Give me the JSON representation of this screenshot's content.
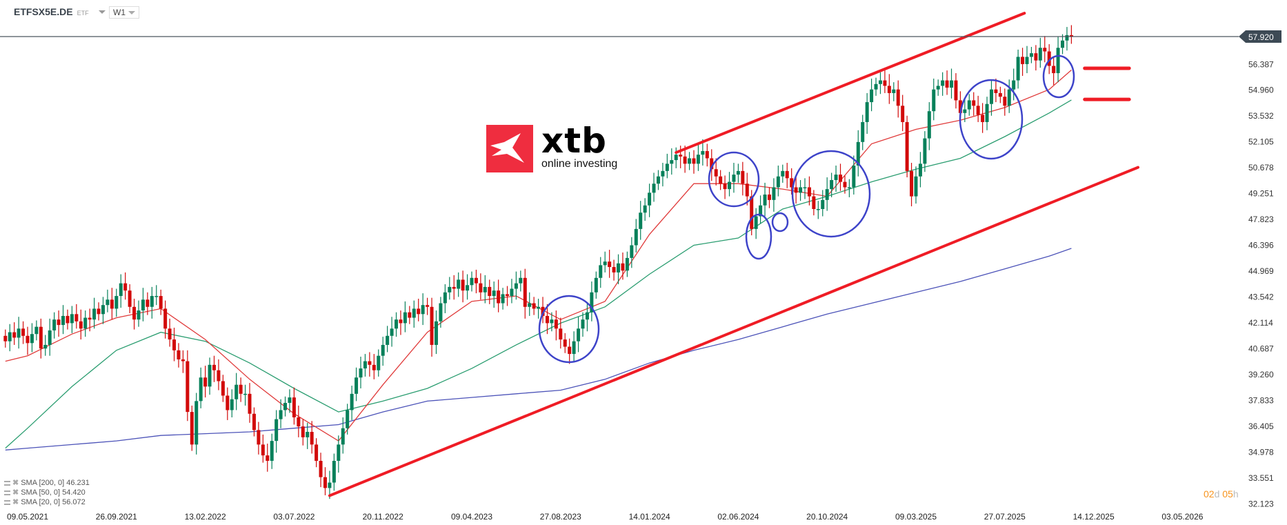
{
  "header": {
    "symbol": "ETFSX5E.DE",
    "type": "ETF",
    "timeframe": "W1"
  },
  "logo": {
    "brand": "xtb",
    "tagline": "online investing"
  },
  "legend": [
    {
      "label": "SMA [200,  0] 46.231",
      "color": "#4b52b8"
    },
    {
      "label": "SMA [50,  0] 54.420",
      "color": "#2a9d70"
    },
    {
      "label": "SMA [20,  0] 56.072",
      "color": "#e03a3a"
    }
  ],
  "countdown": {
    "days": "02",
    "d": "d",
    "hours": "05",
    "h": "h"
  },
  "colors": {
    "up": "#07805a",
    "down": "#d20a0a",
    "channel": "#ef1c25",
    "circles": "#3d43c9",
    "price_tag": "#3d4a55"
  },
  "chart_data": {
    "type": "candlestick",
    "interval": "W1",
    "current_price": "57.920",
    "y_ticks": [
      "56.387",
      "54.960",
      "53.532",
      "52.105",
      "50.678",
      "49.251",
      "47.823",
      "46.396",
      "44.969",
      "43.542",
      "42.114",
      "40.687",
      "39.260",
      "37.833",
      "36.405",
      "34.978",
      "33.551",
      "32.123"
    ],
    "x_ticks": [
      "09.05.2021",
      "26.09.2021",
      "13.02.2022",
      "03.07.2022",
      "20.11.2022",
      "09.04.2023",
      "27.08.2023",
      "14.01.2024",
      "02.06.2024",
      "20.10.2024",
      "09.03.2025",
      "27.07.2025",
      "14.12.2025",
      "03.05.2026"
    ],
    "first_candle": "2021-04-04",
    "closes": [
      41.1,
      41.6,
      41.3,
      41.8,
      41.4,
      41.0,
      41.5,
      41.9,
      40.7,
      40.9,
      41.7,
      42.3,
      42.0,
      42.5,
      42.1,
      42.6,
      42.2,
      41.8,
      42.4,
      42.3,
      42.9,
      42.6,
      43.1,
      43.4,
      42.9,
      43.6,
      44.3,
      43.9,
      43.0,
      42.3,
      42.8,
      43.4,
      43.0,
      43.6,
      43.6,
      42.9,
      41.8,
      41.2,
      40.6,
      40.1,
      40.0,
      37.2,
      35.4,
      37.8,
      39.1,
      38.6,
      39.8,
      39.5,
      38.9,
      38.1,
      37.3,
      37.9,
      38.7,
      38.2,
      38.2,
      37.1,
      36.2,
      35.4,
      34.8,
      34.5,
      35.6,
      36.8,
      37.3,
      37.7,
      38.0,
      36.9,
      36.4,
      35.8,
      36.1,
      35.4,
      34.5,
      33.6,
      33.0,
      33.3,
      34.5,
      35.4,
      36.3,
      37.3,
      38.2,
      39.1,
      39.6,
      40.0,
      39.8,
      39.5,
      40.3,
      40.9,
      41.4,
      41.8,
      42.3,
      42.1,
      42.7,
      42.4,
      42.9,
      42.6,
      43.1,
      43.0,
      40.9,
      42.2,
      43.2,
      43.8,
      44.1,
      44.0,
      44.5,
      43.9,
      44.2,
      44.6,
      44.3,
      43.8,
      44.1,
      43.6,
      43.9,
      43.2,
      43.7,
      43.6,
      44.0,
      44.3,
      44.6,
      43.0,
      43.2,
      42.9,
      43.0,
      42.5,
      42.1,
      42.3,
      41.8,
      41.2,
      40.8,
      40.4,
      41.1,
      41.8,
      42.3,
      42.7,
      43.8,
      44.6,
      45.3,
      45.5,
      45.2,
      44.9,
      45.4,
      45.0,
      45.7,
      46.4,
      47.3,
      48.2,
      48.6,
      49.3,
      49.8,
      50.2,
      50.5,
      50.9,
      51.1,
      51.4,
      51.3,
      50.9,
      51.2,
      50.9,
      51.4,
      51.6,
      51.2,
      50.6,
      50.2,
      49.8,
      49.5,
      49.9,
      50.3,
      50.5,
      49.8,
      49.1,
      47.3,
      48.0,
      48.6,
      49.2,
      48.9,
      49.6,
      50.2,
      50.5,
      50.1,
      49.6,
      49.3,
      49.6,
      49.6,
      49.1,
      48.4,
      48.4,
      48.9,
      49.5,
      50.0,
      50.3,
      49.9,
      49.6,
      49.6,
      50.8,
      52.1,
      53.2,
      54.3,
      55.0,
      55.3,
      55.5,
      55.2,
      54.8,
      55.0,
      54.1,
      53.2,
      50.5,
      49.1,
      50.2,
      50.9,
      52.3,
      53.8,
      55.0,
      55.2,
      55.5,
      55.1,
      55.5,
      54.4,
      53.7,
      53.9,
      54.4,
      54.1,
      53.6,
      53.2,
      54.2,
      55.0,
      54.8,
      54.6,
      54.1,
      55.0,
      55.5,
      56.8,
      56.4,
      56.8,
      57.0,
      56.6,
      57.3,
      57.1,
      56.3,
      55.9,
      57.3,
      57.7,
      58.0,
      57.92
    ],
    "sma": [
      {
        "name": "SMA 200",
        "color": "#4b52b8",
        "points": [
          [
            "2021-04-04",
            35.1
          ],
          [
            "2021-05-09",
            35.2
          ],
          [
            "2021-07-18",
            35.4
          ],
          [
            "2021-09-26",
            35.6
          ],
          [
            "2021-12-05",
            35.9
          ],
          [
            "2022-02-13",
            36.0
          ],
          [
            "2022-04-24",
            36.1
          ],
          [
            "2022-07-03",
            36.3
          ],
          [
            "2022-09-11",
            36.5
          ],
          [
            "2022-11-20",
            37.2
          ],
          [
            "2023-01-29",
            37.8
          ],
          [
            "2023-04-09",
            38.0
          ],
          [
            "2023-06-18",
            38.2
          ],
          [
            "2023-08-27",
            38.4
          ],
          [
            "2023-11-05",
            39.0
          ],
          [
            "2024-01-14",
            39.9
          ],
          [
            "2024-03-24",
            40.6
          ],
          [
            "2024-06-02",
            41.2
          ],
          [
            "2024-08-11",
            41.9
          ],
          [
            "2024-10-20",
            42.6
          ],
          [
            "2024-12-29",
            43.2
          ],
          [
            "2025-03-09",
            43.8
          ],
          [
            "2025-05-18",
            44.4
          ],
          [
            "2025-07-27",
            45.1
          ],
          [
            "2025-10-05",
            45.8
          ],
          [
            "2025-11-09",
            46.231
          ]
        ]
      },
      {
        "name": "SMA 50",
        "color": "#2a9d70",
        "points": [
          [
            "2021-04-04",
            35.2
          ],
          [
            "2021-05-09",
            36.3
          ],
          [
            "2021-07-18",
            38.6
          ],
          [
            "2021-09-26",
            40.6
          ],
          [
            "2021-12-05",
            41.6
          ],
          [
            "2022-02-13",
            41.1
          ],
          [
            "2022-04-24",
            39.9
          ],
          [
            "2022-07-03",
            38.5
          ],
          [
            "2022-09-11",
            37.2
          ],
          [
            "2022-11-20",
            37.8
          ],
          [
            "2023-01-29",
            38.5
          ],
          [
            "2023-04-09",
            39.6
          ],
          [
            "2023-06-18",
            40.9
          ],
          [
            "2023-08-27",
            42.1
          ],
          [
            "2023-11-05",
            43.0
          ],
          [
            "2024-01-14",
            44.8
          ],
          [
            "2024-03-24",
            46.4
          ],
          [
            "2024-06-02",
            46.8
          ],
          [
            "2024-08-11",
            48.4
          ],
          [
            "2024-10-20",
            49.1
          ],
          [
            "2024-12-29",
            49.9
          ],
          [
            "2025-03-09",
            50.6
          ],
          [
            "2025-05-18",
            51.2
          ],
          [
            "2025-07-27",
            52.4
          ],
          [
            "2025-10-05",
            53.7
          ],
          [
            "2025-11-09",
            54.42
          ]
        ]
      },
      {
        "name": "SMA 20",
        "color": "#e03a3a",
        "points": [
          [
            "2021-04-04",
            40.0
          ],
          [
            "2021-05-09",
            40.3
          ],
          [
            "2021-07-18",
            41.5
          ],
          [
            "2021-09-26",
            42.4
          ],
          [
            "2021-12-05",
            42.9
          ],
          [
            "2022-02-13",
            41.2
          ],
          [
            "2022-04-24",
            39.0
          ],
          [
            "2022-07-03",
            37.1
          ],
          [
            "2022-09-11",
            35.6
          ],
          [
            "2022-11-20",
            38.7
          ],
          [
            "2023-01-29",
            41.6
          ],
          [
            "2023-04-09",
            43.3
          ],
          [
            "2023-06-18",
            43.6
          ],
          [
            "2023-08-27",
            42.3
          ],
          [
            "2023-11-05",
            43.3
          ],
          [
            "2024-01-14",
            47.0
          ],
          [
            "2024-03-24",
            49.8
          ],
          [
            "2024-06-02",
            49.8
          ],
          [
            "2024-08-11",
            49.5
          ],
          [
            "2024-10-20",
            49.1
          ],
          [
            "2024-12-29",
            52.0
          ],
          [
            "2025-03-09",
            52.8
          ],
          [
            "2025-05-18",
            53.3
          ],
          [
            "2025-07-27",
            54.0
          ],
          [
            "2025-10-05",
            55.0
          ],
          [
            "2025-11-09",
            56.072
          ]
        ]
      }
    ],
    "channel": [
      {
        "from": [
          "2024-02-25",
          51.52
        ],
        "to": [
          "2025-08-27",
          59.21
        ]
      },
      {
        "from": [
          "2022-08-28",
          32.58
        ],
        "to": [
          "2026-02-22",
          50.7
        ]
      }
    ],
    "levels": [
      {
        "price": 56.17,
        "from": "2025-11-30",
        "to": "2026-02-08"
      },
      {
        "price": 54.45,
        "from": "2025-11-30",
        "to": "2026-02-08"
      }
    ]
  }
}
